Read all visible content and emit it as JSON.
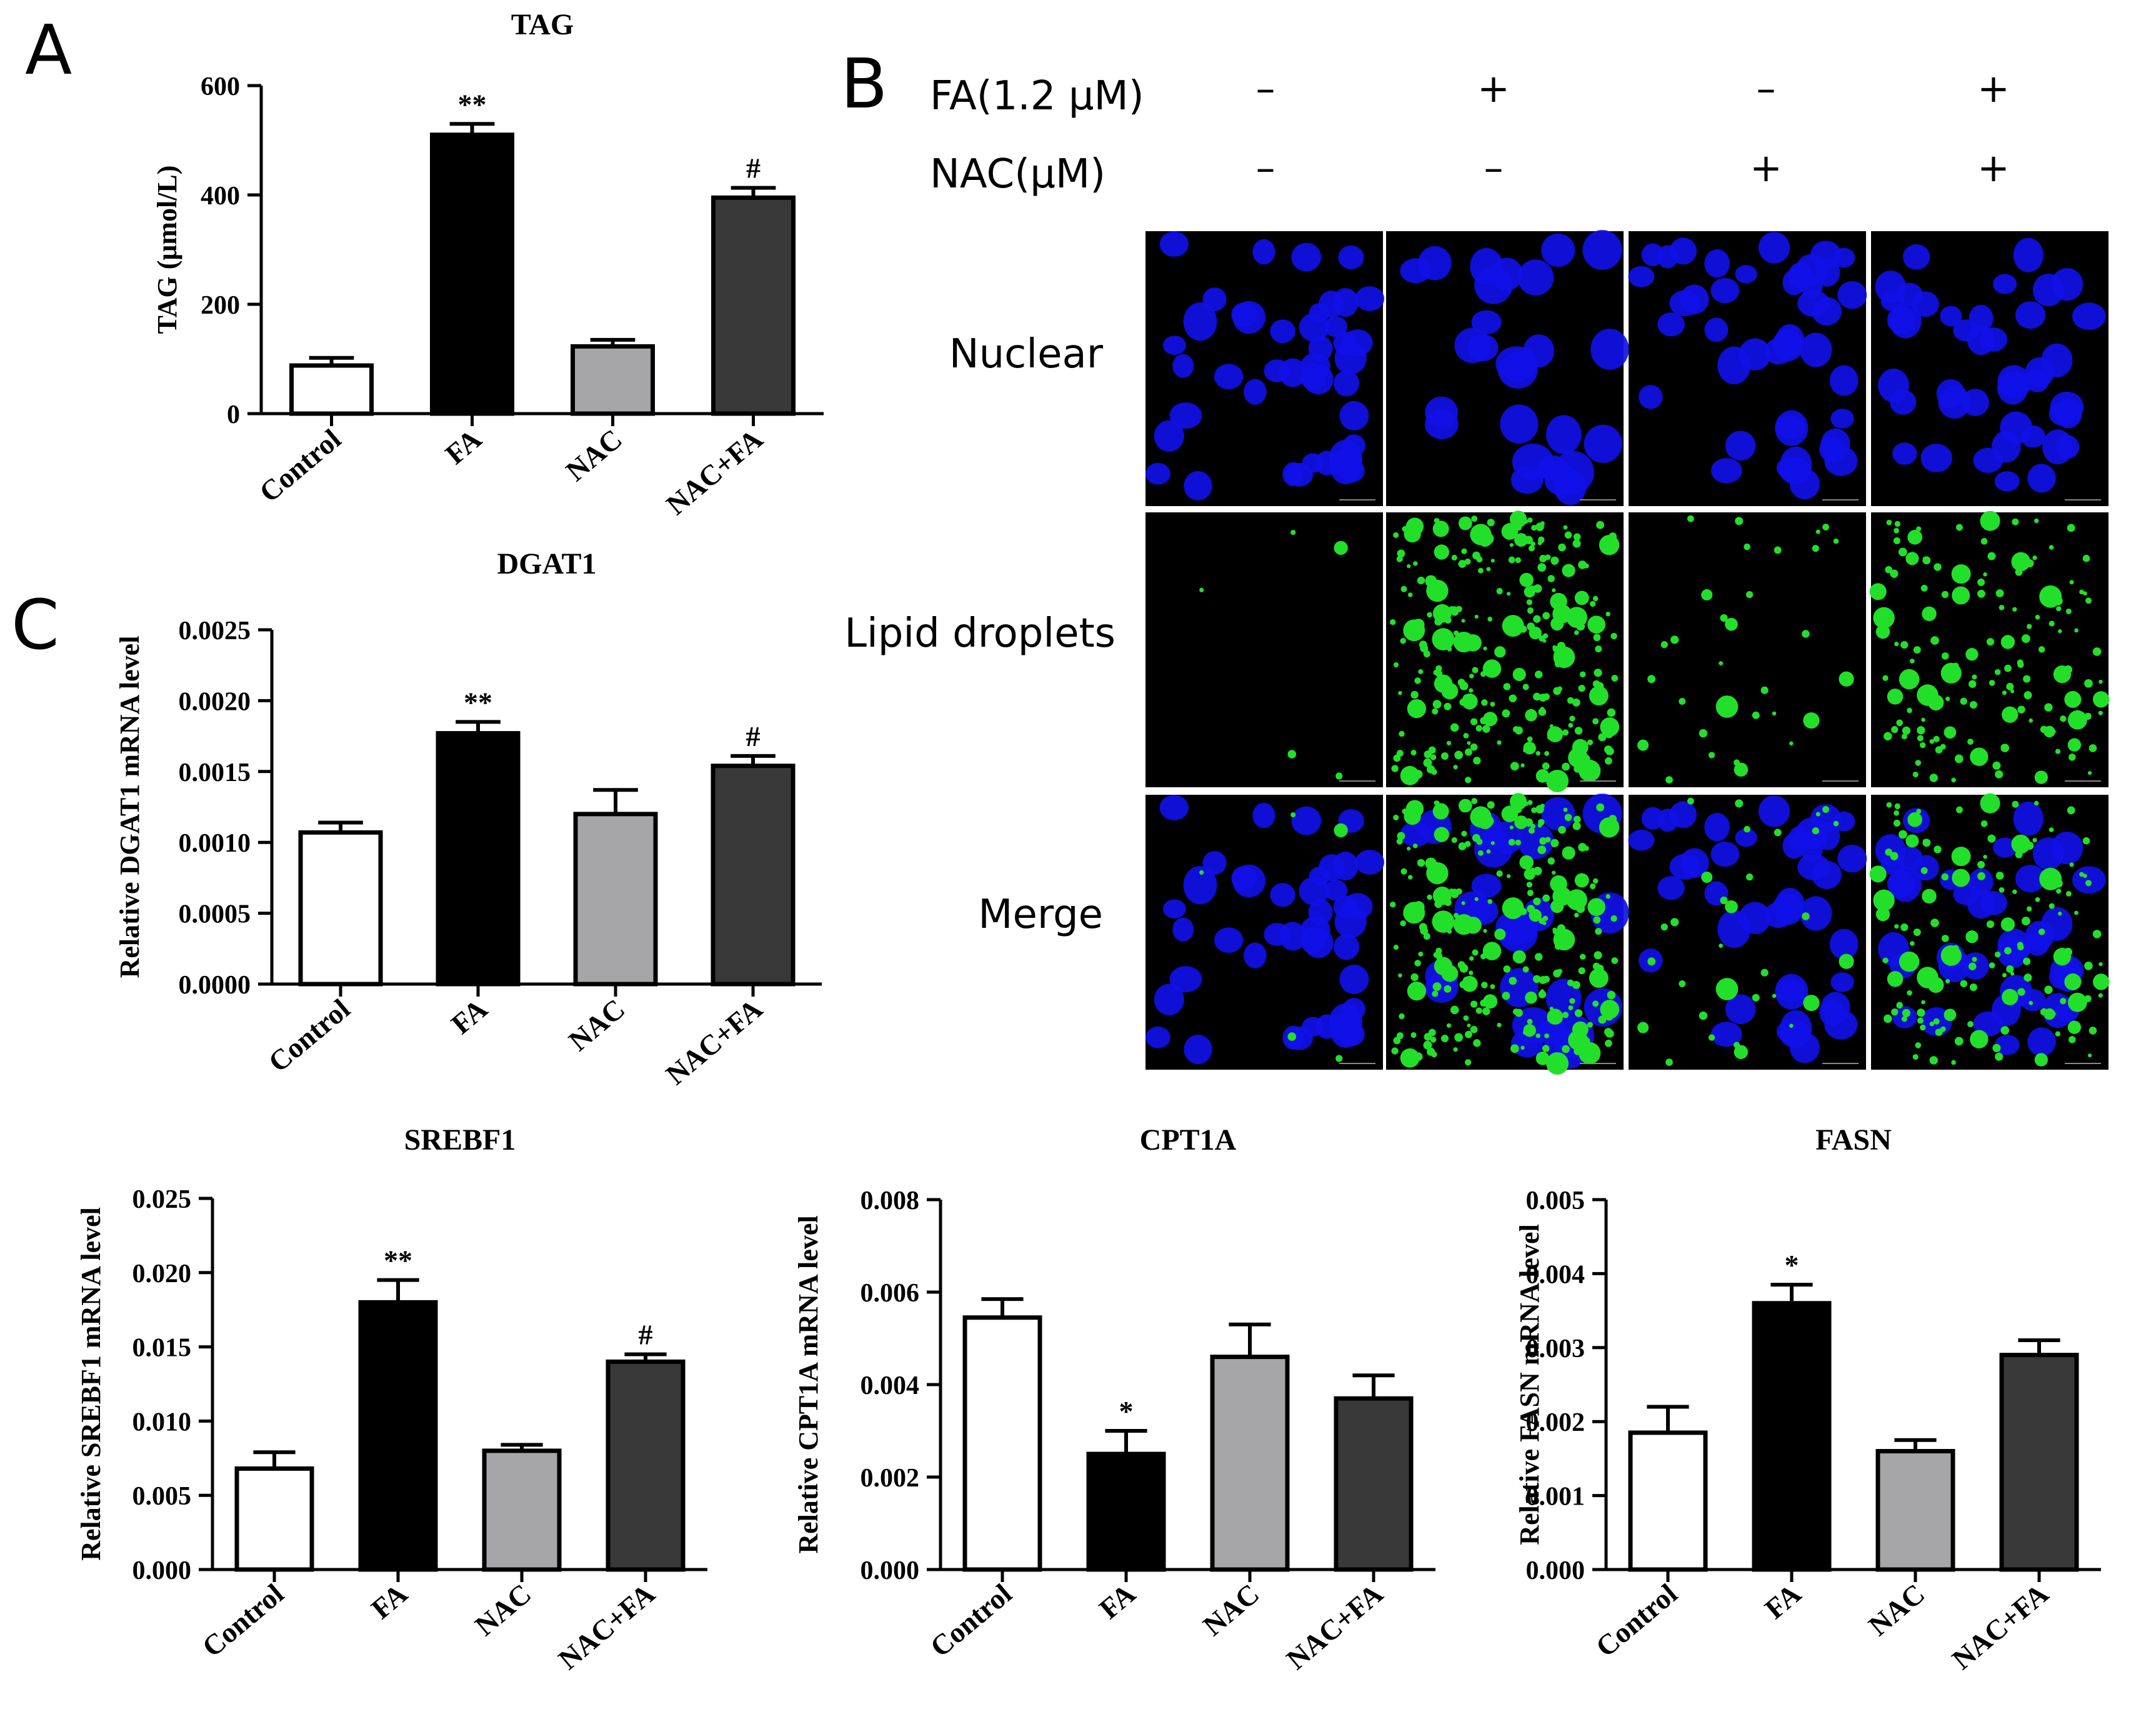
{
  "panels": [
    {
      "id": "A",
      "letter": "A"
    },
    {
      "id": "B",
      "letter": "B"
    },
    {
      "id": "C",
      "letter": "C"
    }
  ],
  "chart_data": [
    {
      "id": "tag",
      "type": "bar",
      "title": "TAG",
      "ylabel": "TAG (μmol/L)",
      "categories": [
        "Control",
        "FA",
        "NAC",
        "NAC+FA"
      ],
      "values": [
        88,
        510,
        123,
        395
      ],
      "errors": [
        14,
        20,
        12,
        18
      ],
      "annotations": [
        "",
        "**",
        "",
        "#"
      ],
      "ylim": [
        0,
        600
      ],
      "yticks": [
        0,
        200,
        400,
        600
      ],
      "ytick_labels": [
        "0",
        "200",
        "400",
        "600"
      ],
      "colors": [
        "#ffffff",
        "#000000",
        "#a6a6a8",
        "#393939"
      ],
      "legend": "none"
    },
    {
      "id": "dgat1",
      "type": "bar",
      "title": "DGAT1",
      "ylabel": "Relative DGAT1 mRNA level",
      "categories": [
        "Control",
        "FA",
        "NAC",
        "NAC+FA"
      ],
      "values": [
        0.00107,
        0.00177,
        0.0012,
        0.00154
      ],
      "errors": [
        7e-05,
        8e-05,
        0.00017,
        7e-05
      ],
      "annotations": [
        "",
        "**",
        "",
        "#"
      ],
      "ylim": [
        0,
        0.0025
      ],
      "yticks": [
        0,
        0.0005,
        0.001,
        0.0015,
        0.002,
        0.0025
      ],
      "ytick_labels": [
        "0.0000",
        "0.0005",
        "0.0010",
        "0.0015",
        "0.0020",
        "0.0025"
      ],
      "colors": [
        "#ffffff",
        "#000000",
        "#a6a6a8",
        "#393939"
      ],
      "legend": "none"
    },
    {
      "id": "srebf1",
      "type": "bar",
      "title": "SREBF1",
      "ylabel": "Relative SREBF1 mRNA level",
      "categories": [
        "Control",
        "FA",
        "NAC",
        "NAC+FA"
      ],
      "values": [
        0.0068,
        0.018,
        0.008,
        0.014
      ],
      "errors": [
        0.0011,
        0.0015,
        0.0004,
        0.0005
      ],
      "annotations": [
        "",
        "**",
        "",
        "#"
      ],
      "ylim": [
        0,
        0.025
      ],
      "yticks": [
        0,
        0.005,
        0.01,
        0.015,
        0.02,
        0.025
      ],
      "ytick_labels": [
        "0.000",
        "0.005",
        "0.010",
        "0.015",
        "0.020",
        "0.025"
      ],
      "colors": [
        "#ffffff",
        "#000000",
        "#a6a6a8",
        "#393939"
      ],
      "legend": "none"
    },
    {
      "id": "cpt1a",
      "type": "bar",
      "title": "CPT1A",
      "ylabel": "Relative CPT1A mRNA level",
      "categories": [
        "Control",
        "FA",
        "NAC",
        "NAC+FA"
      ],
      "values": [
        0.00545,
        0.0025,
        0.0046,
        0.0037
      ],
      "errors": [
        0.0004,
        0.0005,
        0.0007,
        0.0005
      ],
      "annotations": [
        "",
        "*",
        "",
        ""
      ],
      "ylim": [
        0,
        0.008
      ],
      "yticks": [
        0,
        0.002,
        0.004,
        0.006,
        0.008
      ],
      "ytick_labels": [
        "0.000",
        "0.002",
        "0.004",
        "0.006",
        "0.008"
      ],
      "colors": [
        "#ffffff",
        "#000000",
        "#a6a6a8",
        "#393939"
      ],
      "legend": "none"
    },
    {
      "id": "fasn",
      "type": "bar",
      "title": "FASN",
      "ylabel": "Relative FASN mRNA level",
      "categories": [
        "Control",
        "FA",
        "NAC",
        "NAC+FA"
      ],
      "values": [
        0.00185,
        0.0036,
        0.0016,
        0.0029
      ],
      "errors": [
        0.00035,
        0.00025,
        0.00015,
        0.0002
      ],
      "annotations": [
        "",
        "*",
        "",
        ""
      ],
      "ylim": [
        0,
        0.005
      ],
      "yticks": [
        0,
        0.001,
        0.002,
        0.003,
        0.004,
        0.005
      ],
      "ytick_labels": [
        "0.000",
        "0.001",
        "0.002",
        "0.003",
        "0.004",
        "0.005"
      ],
      "colors": [
        "#ffffff",
        "#000000",
        "#a6a6a8",
        "#393939"
      ],
      "legend": "none"
    }
  ],
  "microscopy": {
    "conditions": [
      {
        "label": "FA(1.2 μM)",
        "values": [
          "–",
          "+",
          "–",
          "+"
        ]
      },
      {
        "label": "NAC(μM)",
        "values": [
          "–",
          "–",
          "+",
          "+"
        ]
      }
    ],
    "rows": [
      "Nuclear",
      "Lipid droplets",
      "Merge"
    ],
    "nuclei_color": "#1010e8",
    "lipid_color": "#22e02a",
    "background": "#000000",
    "lipid_density": [
      0.02,
      1.0,
      0.12,
      0.55
    ]
  }
}
